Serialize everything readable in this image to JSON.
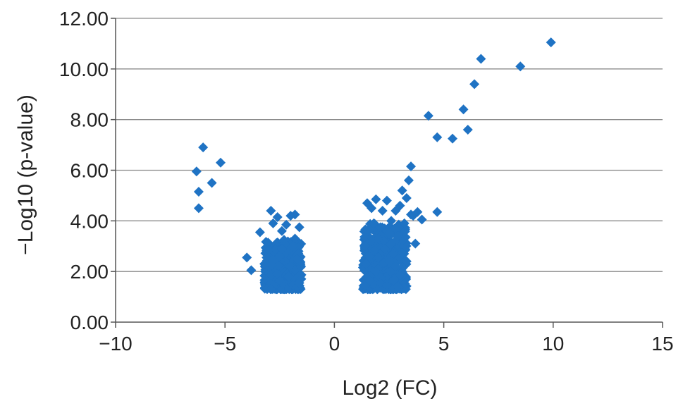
{
  "chart_data": {
    "type": "scatter",
    "title": "",
    "xlabel": "Log2 (FC)",
    "ylabel": "−Log10 (p-value)",
    "xlim": [
      -10,
      15
    ],
    "ylim": [
      0,
      12
    ],
    "x_ticks": [
      -10,
      -5,
      0,
      5,
      10,
      15
    ],
    "x_tick_labels": [
      "−10",
      "−5",
      "0",
      "5",
      "10",
      "15"
    ],
    "y_ticks": [
      0,
      2,
      4,
      6,
      8,
      10,
      12
    ],
    "y_tick_labels": [
      "0.00",
      "2.00",
      "4.00",
      "6.00",
      "8.00",
      "10.00",
      "12.00"
    ],
    "grid": "horizontal",
    "marker": "diamond",
    "point_color": "#1f73c4",
    "series": [
      {
        "points": [
          [
            -6.3,
            5.95
          ],
          [
            -6.2,
            5.15
          ],
          [
            -6.2,
            4.5
          ],
          [
            -6.0,
            6.9
          ],
          [
            -5.6,
            5.5
          ],
          [
            -5.2,
            6.3
          ],
          [
            -4.0,
            2.55
          ],
          [
            -3.8,
            2.05
          ],
          [
            -3.4,
            3.55
          ],
          [
            -3.2,
            2.3
          ],
          [
            -3.0,
            2.85
          ],
          [
            -2.9,
            4.4
          ],
          [
            -2.8,
            3.9
          ],
          [
            -2.6,
            4.15
          ],
          [
            -2.4,
            3.6
          ],
          [
            -2.2,
            3.85
          ],
          [
            -2.0,
            4.2
          ],
          [
            -1.8,
            4.25
          ],
          [
            -1.6,
            3.75
          ],
          [
            -3.1,
            2.55
          ],
          [
            -2.7,
            2.0
          ],
          [
            -2.5,
            1.65
          ],
          [
            -2.3,
            1.45
          ],
          [
            -2.1,
            1.35
          ],
          [
            -1.9,
            1.45
          ],
          [
            -1.7,
            1.4
          ],
          [
            -1.6,
            1.55
          ],
          [
            -2.9,
            1.85
          ],
          [
            -2.3,
            3.25
          ],
          [
            -1.8,
            3.3
          ],
          [
            -2.5,
            2.6
          ],
          [
            -2.0,
            2.2
          ],
          [
            -1.7,
            2.5
          ],
          [
            -2.8,
            2.45
          ],
          [
            -2.2,
            2.75
          ],
          [
            -1.9,
            3.0
          ],
          [
            -2.6,
            1.9
          ],
          [
            -2.4,
            2.9
          ],
          [
            -2.1,
            1.8
          ],
          [
            -1.8,
            2.05
          ],
          [
            1.4,
            1.45
          ],
          [
            1.4,
            3.0
          ],
          [
            1.45,
            2.3
          ],
          [
            1.5,
            4.7
          ],
          [
            1.55,
            3.6
          ],
          [
            1.5,
            1.75
          ],
          [
            1.6,
            2.6
          ],
          [
            1.7,
            4.5
          ],
          [
            1.8,
            3.9
          ],
          [
            1.8,
            1.5
          ],
          [
            1.9,
            4.85
          ],
          [
            2.0,
            3.3
          ],
          [
            2.0,
            2.1
          ],
          [
            2.1,
            1.55
          ],
          [
            2.2,
            4.4
          ],
          [
            2.2,
            2.8
          ],
          [
            2.3,
            3.7
          ],
          [
            2.4,
            1.45
          ],
          [
            2.4,
            4.8
          ],
          [
            2.5,
            2.4
          ],
          [
            2.6,
            4.0
          ],
          [
            2.6,
            3.1
          ],
          [
            2.7,
            1.65
          ],
          [
            2.8,
            4.4
          ],
          [
            2.8,
            2.2
          ],
          [
            2.9,
            3.4
          ],
          [
            3.0,
            4.6
          ],
          [
            3.0,
            1.85
          ],
          [
            3.1,
            5.2
          ],
          [
            3.1,
            2.75
          ],
          [
            3.2,
            3.9
          ],
          [
            3.3,
            4.9
          ],
          [
            3.3,
            2.4
          ],
          [
            3.4,
            5.6
          ],
          [
            3.5,
            6.15
          ],
          [
            3.5,
            4.25
          ],
          [
            3.6,
            4.2
          ],
          [
            3.7,
            3.1
          ],
          [
            3.8,
            4.35
          ],
          [
            4.0,
            4.05
          ],
          [
            2.0,
            2.55
          ],
          [
            2.3,
            2.9
          ],
          [
            1.7,
            3.2
          ],
          [
            2.5,
            3.5
          ],
          [
            2.1,
            3.75
          ],
          [
            1.9,
            2.0
          ],
          [
            2.7,
            2.7
          ],
          [
            1.6,
            1.65
          ],
          [
            4.3,
            8.15
          ],
          [
            4.7,
            7.3
          ],
          [
            4.7,
            4.35
          ],
          [
            5.4,
            7.25
          ],
          [
            5.9,
            8.4
          ],
          [
            6.1,
            7.6
          ],
          [
            6.4,
            9.4
          ],
          [
            6.7,
            10.4
          ],
          [
            8.5,
            10.1
          ],
          [
            9.9,
            11.05
          ]
        ],
        "dense_clusters": [
          {
            "x_range": [
              -3.2,
              -1.5
            ],
            "y_range": [
              1.3,
              3.2
            ]
          },
          {
            "x_range": [
              1.3,
              3.3
            ],
            "y_range": [
              1.3,
              3.9
            ]
          }
        ]
      }
    ]
  }
}
